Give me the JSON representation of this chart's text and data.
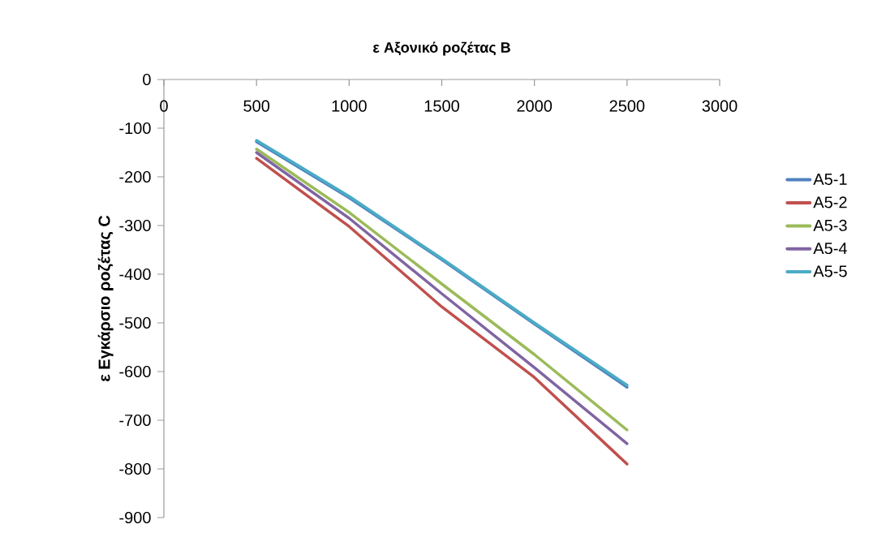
{
  "chart_data": {
    "type": "line",
    "title": "ε Αξονικό ροζέτας Β",
    "ylabel": "ε Εγκάρσιο ροζέτας C",
    "x": [
      500,
      1000,
      1500,
      2000,
      2500
    ],
    "xlim": [
      0,
      3000
    ],
    "xticks": [
      0,
      500,
      1000,
      1500,
      2000,
      2500,
      3000
    ],
    "ylim": [
      -900,
      0
    ],
    "yticks": [
      -900,
      -800,
      -700,
      -600,
      -500,
      -400,
      -300,
      -200,
      -100,
      0
    ],
    "grid": false,
    "legend": "right",
    "marker": "none",
    "line_style": "solid",
    "series": [
      {
        "name": "A5-1",
        "color": "#4f81bd",
        "values": [
          -128,
          -243,
          -370,
          -502,
          -632
        ]
      },
      {
        "name": "A5-2",
        "color": "#c0504d",
        "values": [
          -162,
          -302,
          -467,
          -612,
          -790
        ]
      },
      {
        "name": "A5-3",
        "color": "#9bbb59",
        "values": [
          -143,
          -273,
          -420,
          -565,
          -720
        ]
      },
      {
        "name": "A5-4",
        "color": "#8064a2",
        "values": [
          -150,
          -285,
          -440,
          -592,
          -748
        ]
      },
      {
        "name": "A5-5",
        "color": "#4bacc6",
        "values": [
          -125,
          -240,
          -368,
          -500,
          -628
        ]
      }
    ]
  }
}
